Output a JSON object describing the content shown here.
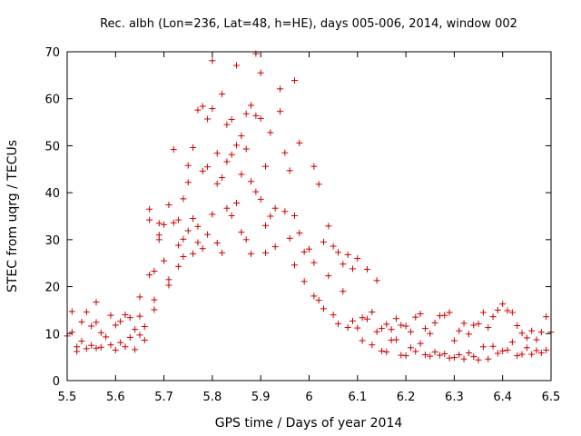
{
  "chart_data": {
    "type": "scatter",
    "title": "Rec. albh (Lon=236, Lat=48, h=HE), days 005-006, 2014, window 002",
    "xlabel": "GPS time / Days of year 2014",
    "ylabel": "STEC from uqrg / TECUs",
    "xlim": [
      5.5,
      6.5
    ],
    "ylim": [
      0,
      70
    ],
    "xticks": [
      "5.5",
      "5.6",
      "5.7",
      "5.8",
      "5.9",
      "6",
      "6.1",
      "6.2",
      "6.3",
      "6.4",
      "6.5"
    ],
    "xtick_values": [
      5.5,
      5.6,
      5.7,
      5.8,
      5.9,
      6.0,
      6.1,
      6.2,
      6.3,
      6.4,
      6.5
    ],
    "yticks": [
      "0",
      "10",
      "20",
      "30",
      "40",
      "50",
      "60",
      "70"
    ],
    "ytick_values": [
      0,
      10,
      20,
      30,
      40,
      50,
      60,
      70
    ],
    "grid": false,
    "marker": "+",
    "color": "#cc0000",
    "series": [
      {
        "name": "STEC",
        "points": [
          [
            5.5,
            9.5
          ],
          [
            5.51,
            14.7
          ],
          [
            5.51,
            10.3
          ],
          [
            5.52,
            7.2
          ],
          [
            5.52,
            6.2
          ],
          [
            5.53,
            12.5
          ],
          [
            5.53,
            8.4
          ],
          [
            5.54,
            14.6
          ],
          [
            5.54,
            6.8
          ],
          [
            5.55,
            11.6
          ],
          [
            5.55,
            7.5
          ],
          [
            5.56,
            16.7
          ],
          [
            5.56,
            12.4
          ],
          [
            5.56,
            6.9
          ],
          [
            5.57,
            10.2
          ],
          [
            5.57,
            7.1
          ],
          [
            5.58,
            9.3
          ],
          [
            5.59,
            13.9
          ],
          [
            5.59,
            7.6
          ],
          [
            5.6,
            11.8
          ],
          [
            5.6,
            6.5
          ],
          [
            5.61,
            12.6
          ],
          [
            5.61,
            8.1
          ],
          [
            5.62,
            14.0
          ],
          [
            5.62,
            7.2
          ],
          [
            5.63,
            13.4
          ],
          [
            5.63,
            9.2
          ],
          [
            5.64,
            10.9
          ],
          [
            5.64,
            6.6
          ],
          [
            5.65,
            17.8
          ],
          [
            5.65,
            13.7
          ],
          [
            5.65,
            9.7
          ],
          [
            5.66,
            11.5
          ],
          [
            5.66,
            8.6
          ],
          [
            5.67,
            22.5
          ],
          [
            5.67,
            34.2
          ],
          [
            5.67,
            36.5
          ],
          [
            5.68,
            15.1
          ],
          [
            5.68,
            17.2
          ],
          [
            5.68,
            23.3
          ],
          [
            5.69,
            31.0
          ],
          [
            5.69,
            30.0
          ],
          [
            5.69,
            33.5
          ],
          [
            5.7,
            25.5
          ],
          [
            5.7,
            33.2
          ],
          [
            5.71,
            20.3
          ],
          [
            5.71,
            21.5
          ],
          [
            5.71,
            37.4
          ],
          [
            5.72,
            33.6
          ],
          [
            5.72,
            49.2
          ],
          [
            5.73,
            28.8
          ],
          [
            5.73,
            34.2
          ],
          [
            5.73,
            24.3
          ],
          [
            5.74,
            26.4
          ],
          [
            5.74,
            30.1
          ],
          [
            5.74,
            38.7
          ],
          [
            5.75,
            42.2
          ],
          [
            5.75,
            45.8
          ],
          [
            5.75,
            31.9
          ],
          [
            5.76,
            49.6
          ],
          [
            5.76,
            34.5
          ],
          [
            5.76,
            27.0
          ],
          [
            5.77,
            57.6
          ],
          [
            5.77,
            29.4
          ],
          [
            5.77,
            32.8
          ],
          [
            5.78,
            58.4
          ],
          [
            5.78,
            44.6
          ],
          [
            5.78,
            28.1
          ],
          [
            5.79,
            55.7
          ],
          [
            5.79,
            45.5
          ],
          [
            5.79,
            31.1
          ],
          [
            5.8,
            68.1
          ],
          [
            5.8,
            57.9
          ],
          [
            5.8,
            35.4
          ],
          [
            5.81,
            48.4
          ],
          [
            5.81,
            41.9
          ],
          [
            5.81,
            29.3
          ],
          [
            5.82,
            61.0
          ],
          [
            5.82,
            43.2
          ],
          [
            5.82,
            27.2
          ],
          [
            5.83,
            54.5
          ],
          [
            5.83,
            46.6
          ],
          [
            5.83,
            36.7
          ],
          [
            5.84,
            55.6
          ],
          [
            5.84,
            48.1
          ],
          [
            5.84,
            35.1
          ],
          [
            5.85,
            67.1
          ],
          [
            5.85,
            50.1
          ],
          [
            5.85,
            37.8
          ],
          [
            5.86,
            52.1
          ],
          [
            5.86,
            43.9
          ],
          [
            5.86,
            31.6
          ],
          [
            5.87,
            56.8
          ],
          [
            5.87,
            49.3
          ],
          [
            5.87,
            30.0
          ],
          [
            5.88,
            58.6
          ],
          [
            5.88,
            42.4
          ],
          [
            5.88,
            27.0
          ],
          [
            5.89,
            69.6
          ],
          [
            5.89,
            56.4
          ],
          [
            5.89,
            40.2
          ],
          [
            5.9,
            65.5
          ],
          [
            5.9,
            55.8
          ],
          [
            5.9,
            38.6
          ],
          [
            5.91,
            45.6
          ],
          [
            5.91,
            33.0
          ],
          [
            5.91,
            27.2
          ],
          [
            5.92,
            52.8
          ],
          [
            5.92,
            35.0
          ],
          [
            5.93,
            36.7
          ],
          [
            5.93,
            28.5
          ],
          [
            5.94,
            62.1
          ],
          [
            5.94,
            57.3
          ],
          [
            5.95,
            48.5
          ],
          [
            5.95,
            36.0
          ],
          [
            5.96,
            44.7
          ],
          [
            5.96,
            30.3
          ],
          [
            5.97,
            63.9
          ],
          [
            5.97,
            35.1
          ],
          [
            5.97,
            24.6
          ],
          [
            5.98,
            50.6
          ],
          [
            5.98,
            31.4
          ],
          [
            5.99,
            27.4
          ],
          [
            5.99,
            21.1
          ],
          [
            6.0,
            28.0
          ],
          [
            6.01,
            45.6
          ],
          [
            6.01,
            25.1
          ],
          [
            6.01,
            18.0
          ],
          [
            6.02,
            41.8
          ],
          [
            6.02,
            17.1
          ],
          [
            6.03,
            29.5
          ],
          [
            6.03,
            15.3
          ],
          [
            6.04,
            32.9
          ],
          [
            6.04,
            22.3
          ],
          [
            6.05,
            28.6
          ],
          [
            6.05,
            14.0
          ],
          [
            6.06,
            27.3
          ],
          [
            6.06,
            12.1
          ],
          [
            6.07,
            24.8
          ],
          [
            6.07,
            19.0
          ],
          [
            6.08,
            26.8
          ],
          [
            6.08,
            11.3
          ],
          [
            6.09,
            23.8
          ],
          [
            6.09,
            12.7
          ],
          [
            6.1,
            26.0
          ],
          [
            6.1,
            11.2
          ],
          [
            6.11,
            13.4
          ],
          [
            6.11,
            8.5
          ],
          [
            6.12,
            23.7
          ],
          [
            6.12,
            13.1
          ],
          [
            6.13,
            14.6
          ],
          [
            6.13,
            7.6
          ],
          [
            6.14,
            21.3
          ],
          [
            6.14,
            10.4
          ],
          [
            6.15,
            11.1
          ],
          [
            6.15,
            6.3
          ],
          [
            6.16,
            12.0
          ],
          [
            6.16,
            6.1
          ],
          [
            6.17,
            10.9
          ],
          [
            6.17,
            8.6
          ],
          [
            6.18,
            13.2
          ],
          [
            6.18,
            8.7
          ],
          [
            6.19,
            11.8
          ],
          [
            6.19,
            5.4
          ],
          [
            6.2,
            11.6
          ],
          [
            6.2,
            5.3
          ],
          [
            6.21,
            10.4
          ],
          [
            6.21,
            7.0
          ],
          [
            6.22,
            13.5
          ],
          [
            6.22,
            6.2
          ],
          [
            6.23,
            14.2
          ],
          [
            6.23,
            7.9
          ],
          [
            6.24,
            11.1
          ],
          [
            6.24,
            5.5
          ],
          [
            6.25,
            10.0
          ],
          [
            6.25,
            5.2
          ],
          [
            6.26,
            12.3
          ],
          [
            6.26,
            6.1
          ],
          [
            6.27,
            13.8
          ],
          [
            6.27,
            5.4
          ],
          [
            6.28,
            13.9
          ],
          [
            6.28,
            5.7
          ],
          [
            6.29,
            14.5
          ],
          [
            6.29,
            4.8
          ],
          [
            6.3,
            8.5
          ],
          [
            6.3,
            4.9
          ],
          [
            6.31,
            10.6
          ],
          [
            6.31,
            5.5
          ],
          [
            6.32,
            12.2
          ],
          [
            6.32,
            4.6
          ],
          [
            6.33,
            9.9
          ],
          [
            6.33,
            5.9
          ],
          [
            6.34,
            11.8
          ],
          [
            6.34,
            5.1
          ],
          [
            6.35,
            12.1
          ],
          [
            6.35,
            4.4
          ],
          [
            6.36,
            14.5
          ],
          [
            6.36,
            7.2
          ],
          [
            6.37,
            11.3
          ],
          [
            6.37,
            4.6
          ],
          [
            6.38,
            13.6
          ],
          [
            6.38,
            7.3
          ],
          [
            6.39,
            15.0
          ],
          [
            6.39,
            5.8
          ],
          [
            6.4,
            16.3
          ],
          [
            6.4,
            6.3
          ],
          [
            6.41,
            14.9
          ],
          [
            6.41,
            6.5
          ],
          [
            6.42,
            14.5
          ],
          [
            6.42,
            8.2
          ],
          [
            6.43,
            11.7
          ],
          [
            6.43,
            5.3
          ],
          [
            6.44,
            10.1
          ],
          [
            6.44,
            5.6
          ],
          [
            6.45,
            9.1
          ],
          [
            6.45,
            7.0
          ],
          [
            6.46,
            10.6
          ],
          [
            6.46,
            5.6
          ],
          [
            6.47,
            8.7
          ],
          [
            6.47,
            6.4
          ],
          [
            6.48,
            10.3
          ],
          [
            6.48,
            5.9
          ],
          [
            6.49,
            13.6
          ],
          [
            6.49,
            6.5
          ],
          [
            6.5,
            10.3
          ]
        ]
      }
    ]
  }
}
